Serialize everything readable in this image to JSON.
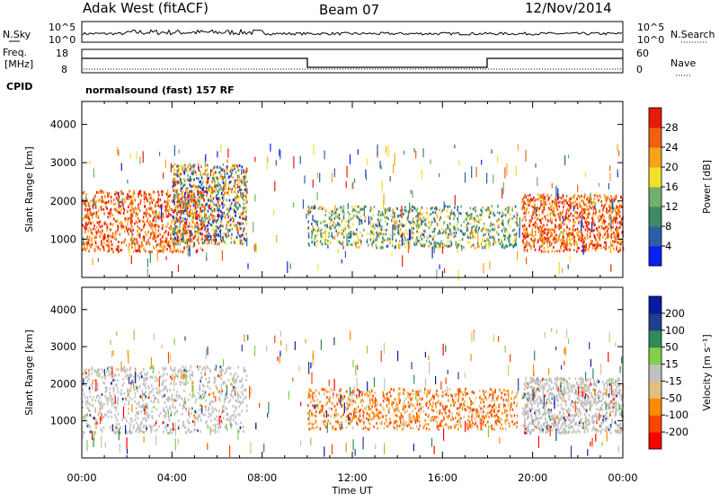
{
  "header": {
    "radar": "Adak West (fitACF)",
    "beam": "Beam 07",
    "date": "12/Nov/2014"
  },
  "noise_panel": {
    "left_label": "N.Sky",
    "left_ticks": [
      "10^5",
      "10^0"
    ],
    "right_label": "N.Search",
    "right_ticks": [
      "10^5",
      "10^0"
    ]
  },
  "freq_panel": {
    "left_label_1": "Freq.",
    "left_label_2": "[MHz]",
    "left_ticks": [
      "18",
      "8"
    ],
    "right_label": "Nave",
    "right_ticks": [
      "60",
      "0"
    ]
  },
  "cpid": {
    "label": "CPID",
    "text": "normalsound (fast) 157 RF"
  },
  "colors": {
    "power_scale": [
      "#0a1ef5",
      "#2a5fa8",
      "#3d8a64",
      "#6fb06a",
      "#f2e02a",
      "#f7a41a",
      "#f06010",
      "#e81a0a"
    ],
    "velocity_scale": [
      "#ff0000",
      "#ff4500",
      "#ff8c00",
      "#e0c080",
      "#c0c0c0",
      "#7fd04a",
      "#2e8b57",
      "#1f3f8f",
      "#0a1aa0"
    ]
  },
  "chart_data": [
    {
      "type": "heatmap",
      "title": "Power",
      "ylabel": "Slant Range [km]",
      "yticks": [
        "1000",
        "2000",
        "3000",
        "4000"
      ],
      "ylim": [
        0,
        4600
      ],
      "xlim": [
        0,
        24
      ],
      "colorbar_label": "Power [dB]",
      "colorbar_ticks": [
        "4",
        "8",
        "12",
        "16",
        "20",
        "24",
        "28"
      ],
      "regions": [
        {
          "t0": 0.0,
          "t1": 5.5,
          "r0": 700,
          "r1": 2300,
          "level": "high",
          "note": "red streaks"
        },
        {
          "t0": 4.0,
          "t1": 7.3,
          "r0": 900,
          "r1": 3000,
          "level": "mixed"
        },
        {
          "t0": 10.0,
          "t1": 19.3,
          "r0": 800,
          "r1": 1900,
          "level": "mid"
        },
        {
          "t0": 19.5,
          "t1": 24.0,
          "r0": 700,
          "r1": 2200,
          "level": "high"
        }
      ]
    },
    {
      "type": "heatmap",
      "title": "Velocity",
      "ylabel": "Slant Range [km]",
      "yticks": [
        "1000",
        "2000",
        "3000",
        "4000"
      ],
      "ylim": [
        0,
        4600
      ],
      "xlim": [
        0,
        24
      ],
      "xlabel": "Time UT",
      "xticks": [
        "00:00",
        "04:00",
        "08:00",
        "12:00",
        "16:00",
        "20:00",
        "00:00"
      ],
      "colorbar_label": "Velocity [m s⁻¹]",
      "colorbar_ticks": [
        "-200",
        "-100",
        "-50",
        "-15",
        "15",
        "50",
        "100",
        "200"
      ],
      "regions": [
        {
          "t0": 0.0,
          "t1": 7.3,
          "r0": 700,
          "r1": 2500,
          "level": "ground-scatter"
        },
        {
          "t0": 10.0,
          "t1": 19.3,
          "r0": 800,
          "r1": 1900,
          "level": "negative"
        },
        {
          "t0": 19.5,
          "t1": 24.0,
          "r0": 700,
          "r1": 2200,
          "level": "ground-scatter"
        }
      ]
    }
  ]
}
